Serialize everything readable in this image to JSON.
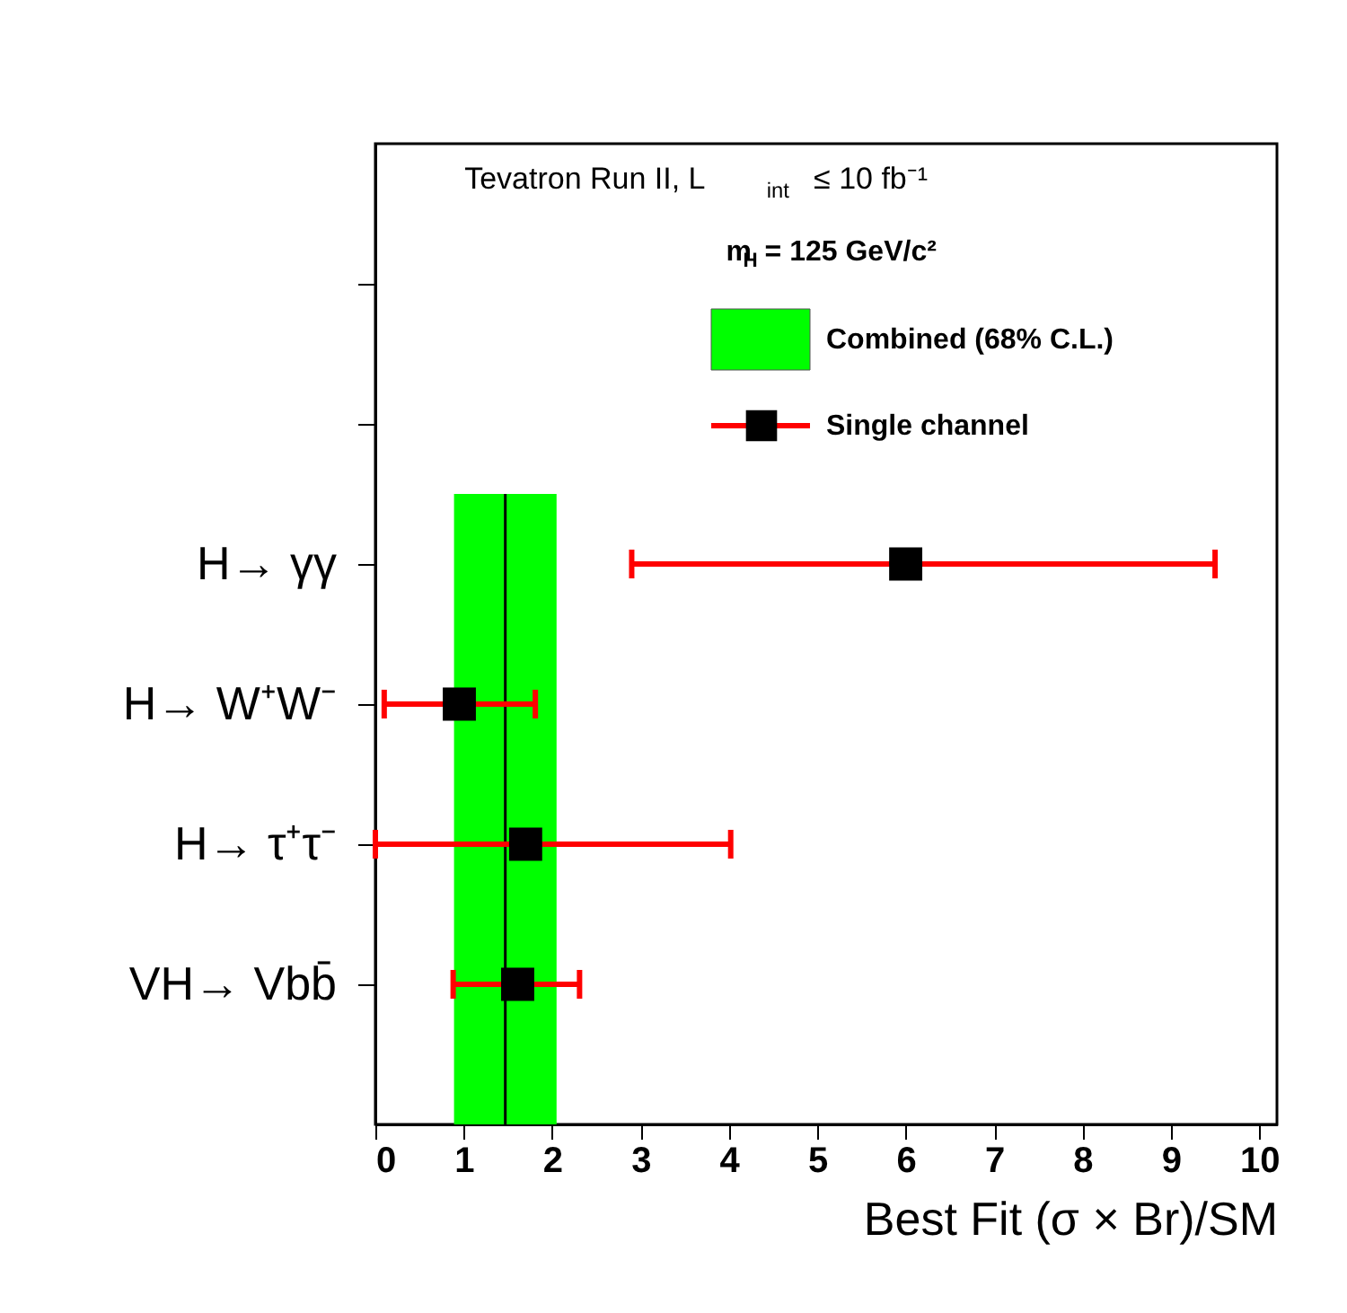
{
  "chart_data": {
    "type": "scatter",
    "categories": [
      null,
      null,
      "H→ γγ",
      "H→ W⁺W⁻",
      "H→ τ⁺τ⁻",
      "VH→ Vbb̄"
    ],
    "series": [
      {
        "name": "Single channel",
        "color": "#000000",
        "values": [
          null,
          null,
          6.0,
          0.95,
          1.7,
          1.61
        ],
        "errors": [
          null,
          null,
          [
            2.9,
            9.5
          ],
          [
            0.1,
            1.81
          ],
          [
            0.0,
            4.02
          ],
          [
            0.88,
            2.31
          ]
        ]
      }
    ],
    "orientation": "horizontal",
    "bands": [
      {
        "axis": "x",
        "from": 0.89,
        "to": 2.05,
        "label": "Combined (68% C.L.)",
        "color": "#00ff00"
      }
    ],
    "ref_lines": [
      {
        "axis": "x",
        "value": 1.47,
        "color": "#000000"
      }
    ],
    "xlabel": "Best Fit (σ × Br)/SM",
    "xlim": [
      0,
      10.2
    ],
    "xticks": [
      0,
      1,
      2,
      3,
      4,
      5,
      6,
      7,
      8,
      9,
      10
    ],
    "annotations": [
      "Tevatron Run II, L$_{int}$ ≤ 10 fb⁻¹",
      "m$_{H}$ = 125 GeV/c²"
    ],
    "marker": "square",
    "legend": "top right",
    "grid": false
  }
}
